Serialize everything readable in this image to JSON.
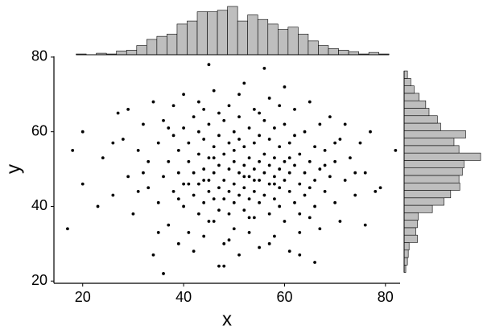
{
  "chart_data": {
    "type": "scatter",
    "xlabel": "x",
    "ylabel": "y",
    "color": "#000000",
    "xlim": [
      14.3,
      82.9
    ],
    "ylim": [
      19.4,
      80.2
    ],
    "xticks": [
      20,
      40,
      60,
      80
    ],
    "yticks": [
      20,
      40,
      60,
      80
    ],
    "x": [
      18,
      20,
      17,
      20,
      23,
      24,
      26,
      27,
      28,
      29,
      30,
      31,
      32,
      33,
      33,
      34,
      34,
      35,
      35,
      36,
      36,
      36,
      37,
      37,
      38,
      38,
      38,
      39,
      39,
      39,
      40,
      40,
      40,
      40,
      41,
      41,
      41,
      42,
      42,
      42,
      42,
      43,
      43,
      43,
      43,
      44,
      44,
      44,
      44,
      44,
      45,
      45,
      45,
      45,
      45,
      46,
      46,
      46,
      46,
      46,
      47,
      47,
      47,
      47,
      47,
      48,
      48,
      48,
      48,
      48,
      48,
      49,
      49,
      49,
      49,
      49,
      50,
      50,
      50,
      50,
      50,
      50,
      51,
      51,
      51,
      51,
      51,
      52,
      52,
      52,
      52,
      52,
      53,
      53,
      53,
      53,
      53,
      54,
      54,
      54,
      54,
      54,
      55,
      55,
      55,
      55,
      55,
      56,
      56,
      56,
      56,
      56,
      57,
      57,
      57,
      57,
      57,
      58,
      58,
      58,
      58,
      58,
      59,
      59,
      59,
      59,
      60,
      60,
      60,
      60,
      60,
      61,
      61,
      61,
      61,
      62,
      62,
      62,
      62,
      63,
      63,
      63,
      63,
      64,
      64,
      64,
      65,
      65,
      65,
      66,
      66,
      66,
      66,
      67,
      67,
      67,
      68,
      68,
      69,
      69,
      70,
      70,
      71,
      71,
      72,
      72,
      73,
      74,
      75,
      76,
      76,
      77,
      78,
      79,
      82,
      26,
      29,
      31,
      32,
      35,
      37,
      41,
      43,
      45,
      47,
      49,
      51,
      53,
      55,
      57,
      59,
      61,
      63,
      65,
      68,
      70,
      74,
      39,
      44,
      46,
      52,
      54,
      58
    ],
    "values": [
      55,
      60,
      34,
      46,
      40,
      53,
      43,
      65,
      58,
      48,
      38,
      55,
      62,
      45,
      52,
      27,
      68,
      41,
      57,
      22,
      48,
      63,
      35,
      52,
      44,
      59,
      67,
      30,
      49,
      55,
      40,
      46,
      61,
      70,
      33,
      52,
      57,
      28,
      43,
      49,
      64,
      38,
      54,
      60,
      46,
      41,
      50,
      58,
      66,
      32,
      78,
      44,
      53,
      47,
      62,
      36,
      49,
      56,
      42,
      71,
      24,
      51,
      45,
      59,
      39,
      24,
      47,
      54,
      63,
      42,
      30,
      50,
      44,
      57,
      38,
      67,
      52,
      46,
      41,
      60,
      34,
      55,
      49,
      43,
      58,
      27,
      64,
      51,
      45,
      39,
      56,
      73,
      48,
      53,
      42,
      61,
      33,
      50,
      44,
      57,
      66,
      37,
      47,
      52,
      41,
      59,
      29,
      77,
      49,
      54,
      43,
      63,
      51,
      46,
      38,
      58,
      69,
      48,
      53,
      42,
      61,
      32,
      50,
      45,
      56,
      40,
      47,
      52,
      62,
      36,
      72,
      49,
      44,
      57,
      28,
      51,
      41,
      59,
      66,
      46,
      54,
      38,
      33,
      49,
      43,
      60,
      52,
      45,
      68,
      25,
      47,
      56,
      40,
      50,
      62,
      34,
      44,
      55,
      48,
      64,
      41,
      52,
      58,
      36,
      47,
      62,
      53,
      43,
      57,
      35,
      49,
      60,
      44,
      45,
      55,
      57,
      66,
      44,
      49,
      33,
      61,
      46,
      68,
      36,
      65,
      31,
      70,
      37,
      65,
      30,
      67,
      53,
      27,
      37,
      51,
      57,
      49,
      42,
      47,
      53,
      48,
      47,
      46
    ],
    "x_histogram": {
      "color": "#bebebe",
      "bins": [
        18.7,
        20.7,
        22.7,
        24.7,
        26.7,
        28.7,
        30.7,
        32.7,
        34.7,
        36.7,
        38.7,
        40.7,
        42.7,
        44.7,
        46.7,
        48.7,
        50.7,
        52.7,
        54.7,
        56.7,
        58.7,
        60.7,
        62.7,
        64.7,
        66.7,
        68.7,
        70.7,
        72.7,
        74.7,
        76.7,
        78.7,
        80.7
      ],
      "counts": [
        1,
        0,
        2,
        1,
        5,
        6,
        12,
        20,
        24,
        27,
        40,
        44,
        56,
        56,
        58,
        63,
        44,
        52,
        46,
        40,
        33,
        36,
        27,
        18,
        12,
        8,
        6,
        4,
        1,
        3,
        1
      ]
    },
    "y_histogram": {
      "color": "#bebebe",
      "bins": [
        22.3,
        24.3,
        26.3,
        28.3,
        30.3,
        32.3,
        34.3,
        36.3,
        38.3,
        40.3,
        42.3,
        44.3,
        46.3,
        48.3,
        50.3,
        52.3,
        54.3,
        56.3,
        58.3,
        60.3,
        62.3,
        64.3,
        66.3,
        68.3,
        70.3,
        72.3,
        74.3,
        76.3
      ],
      "counts": [
        2,
        4,
        5,
        6,
        16,
        14,
        16,
        17,
        34,
        48,
        56,
        67,
        66,
        70,
        72,
        92,
        66,
        60,
        74,
        44,
        40,
        30,
        26,
        18,
        12,
        8,
        4
      ]
    }
  }
}
